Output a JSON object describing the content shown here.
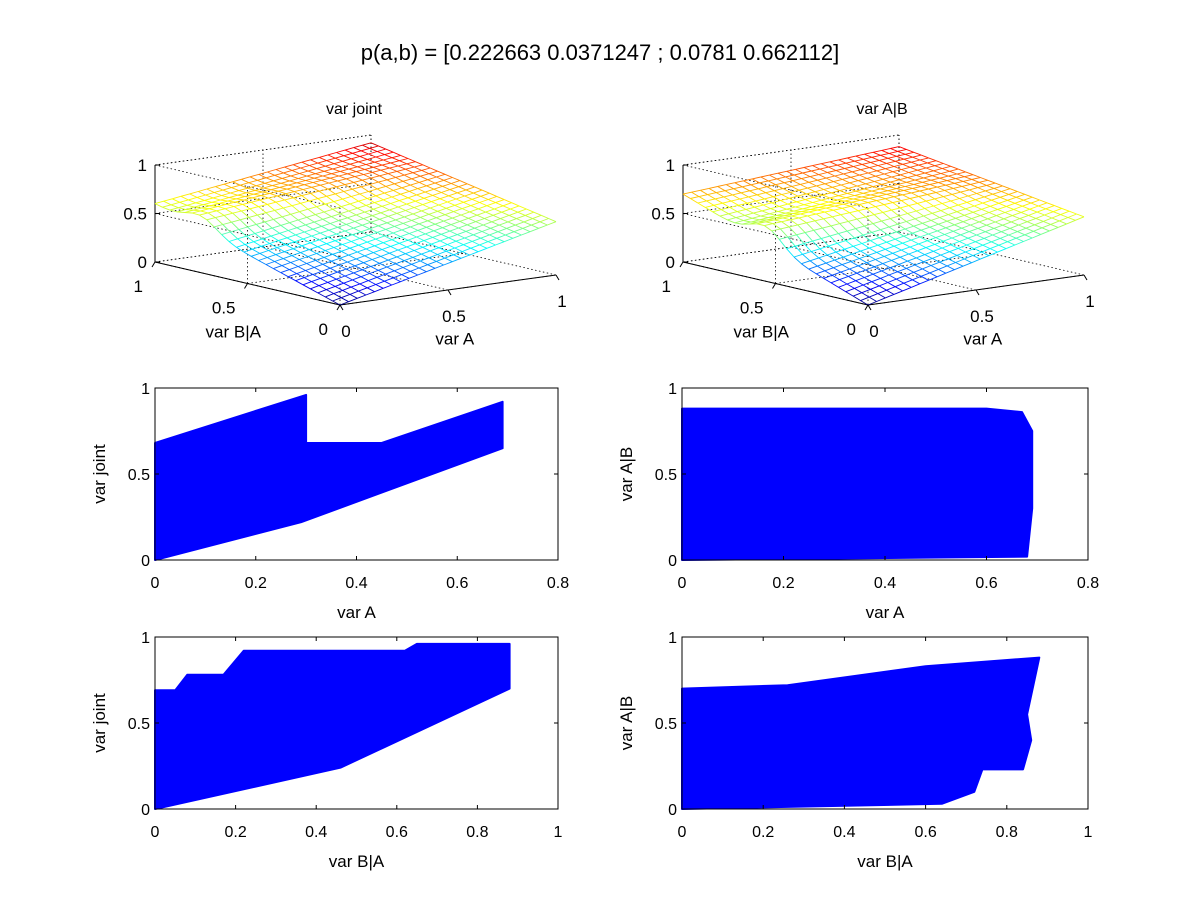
{
  "figure": {
    "suptitle": "p(a,b) = [0.222663 0.0371247 ; 0.0781 0.662112]"
  },
  "chart_data": [
    {
      "id": "surf-joint",
      "type": "surface",
      "title": "var joint",
      "xlabel": "var A",
      "ylabel": "var B|A",
      "zlabel": "",
      "xticks": [
        "0",
        "0.5",
        "1"
      ],
      "yticks": [
        "0",
        "0.5",
        "1"
      ],
      "zticks": [
        "0",
        "0.5",
        "1"
      ],
      "xlim": [
        0,
        1
      ],
      "ylim": [
        0,
        1
      ],
      "zlim": [
        0,
        1
      ],
      "grid": true,
      "colormap": "jet",
      "corner_z": {
        "a0b0": 0.0,
        "a1b0": 0.55,
        "a0b1": 0.6,
        "a1b1": 0.92
      },
      "ridge": {
        "b_center": 0.75,
        "height": 0.15
      }
    },
    {
      "id": "surf-ab",
      "type": "surface",
      "title": "var A|B",
      "xlabel": "var A",
      "ylabel": "var B|A",
      "zlabel": "",
      "xticks": [
        "0",
        "0.5",
        "1"
      ],
      "yticks": [
        "0",
        "0.5",
        "1"
      ],
      "zticks": [
        "0",
        "0.5",
        "1"
      ],
      "xlim": [
        0,
        1
      ],
      "ylim": [
        0,
        1
      ],
      "zlim": [
        0,
        1
      ],
      "grid": true,
      "colormap": "jet",
      "corner_z": {
        "a0b0": 0.0,
        "a1b0": 0.6,
        "a0b1": 0.7,
        "a1b1": 0.88
      },
      "ridge": {
        "b_center": 0.55,
        "height": 0.2
      }
    },
    {
      "id": "scatter-1",
      "type": "scatter",
      "title": "",
      "xlabel": "var A",
      "ylabel": "var joint",
      "xticks": [
        "0",
        "0.2",
        "0.4",
        "0.6",
        "0.8"
      ],
      "yticks": [
        "0",
        "0.5",
        "1"
      ],
      "xlim": [
        0,
        0.8
      ],
      "ylim": [
        0,
        1
      ],
      "color": "#0000ff",
      "region": [
        [
          0,
          0
        ],
        [
          0.29,
          0.22
        ],
        [
          0.69,
          0.65
        ],
        [
          0.69,
          0.92
        ],
        [
          0.45,
          0.68
        ],
        [
          0.3,
          0.68
        ],
        [
          0.3,
          0.96
        ],
        [
          0.0,
          0.68
        ]
      ]
    },
    {
      "id": "scatter-2",
      "type": "scatter",
      "title": "",
      "xlabel": "var A",
      "ylabel": "var A|B",
      "xticks": [
        "0",
        "0.2",
        "0.4",
        "0.6",
        "0.8"
      ],
      "yticks": [
        "0",
        "0.5",
        "1"
      ],
      "xlim": [
        0,
        0.8
      ],
      "ylim": [
        0,
        1
      ],
      "color": "#0000ff",
      "region": [
        [
          0,
          0
        ],
        [
          0.68,
          0.02
        ],
        [
          0.69,
          0.3
        ],
        [
          0.69,
          0.75
        ],
        [
          0.67,
          0.86
        ],
        [
          0.6,
          0.88
        ],
        [
          0,
          0.88
        ]
      ]
    },
    {
      "id": "scatter-3",
      "type": "scatter",
      "title": "",
      "xlabel": "var B|A",
      "ylabel": "var joint",
      "xticks": [
        "0",
        "0.2",
        "0.4",
        "0.6",
        "0.8",
        "1"
      ],
      "yticks": [
        "0",
        "0.5",
        "1"
      ],
      "xlim": [
        0,
        1
      ],
      "ylim": [
        0,
        1
      ],
      "color": "#0000ff",
      "region": [
        [
          0,
          0
        ],
        [
          0.46,
          0.24
        ],
        [
          0.88,
          0.7
        ],
        [
          0.88,
          0.96
        ],
        [
          0.65,
          0.96
        ],
        [
          0.62,
          0.92
        ],
        [
          0.22,
          0.92
        ],
        [
          0.17,
          0.78
        ],
        [
          0.08,
          0.78
        ],
        [
          0.05,
          0.69
        ],
        [
          0,
          0.69
        ]
      ]
    },
    {
      "id": "scatter-4",
      "type": "scatter",
      "title": "",
      "xlabel": "var B|A",
      "ylabel": "var A|B",
      "xticks": [
        "0",
        "0.2",
        "0.4",
        "0.6",
        "0.8",
        "1"
      ],
      "yticks": [
        "0",
        "0.5",
        "1"
      ],
      "xlim": [
        0,
        1
      ],
      "ylim": [
        0,
        1
      ],
      "color": "#0000ff",
      "region": [
        [
          0,
          0
        ],
        [
          0.64,
          0.03
        ],
        [
          0.72,
          0.1
        ],
        [
          0.74,
          0.23
        ],
        [
          0.84,
          0.23
        ],
        [
          0.86,
          0.4
        ],
        [
          0.85,
          0.55
        ],
        [
          0.88,
          0.88
        ],
        [
          0.6,
          0.83
        ],
        [
          0.26,
          0.72
        ],
        [
          0,
          0.7
        ]
      ]
    }
  ]
}
